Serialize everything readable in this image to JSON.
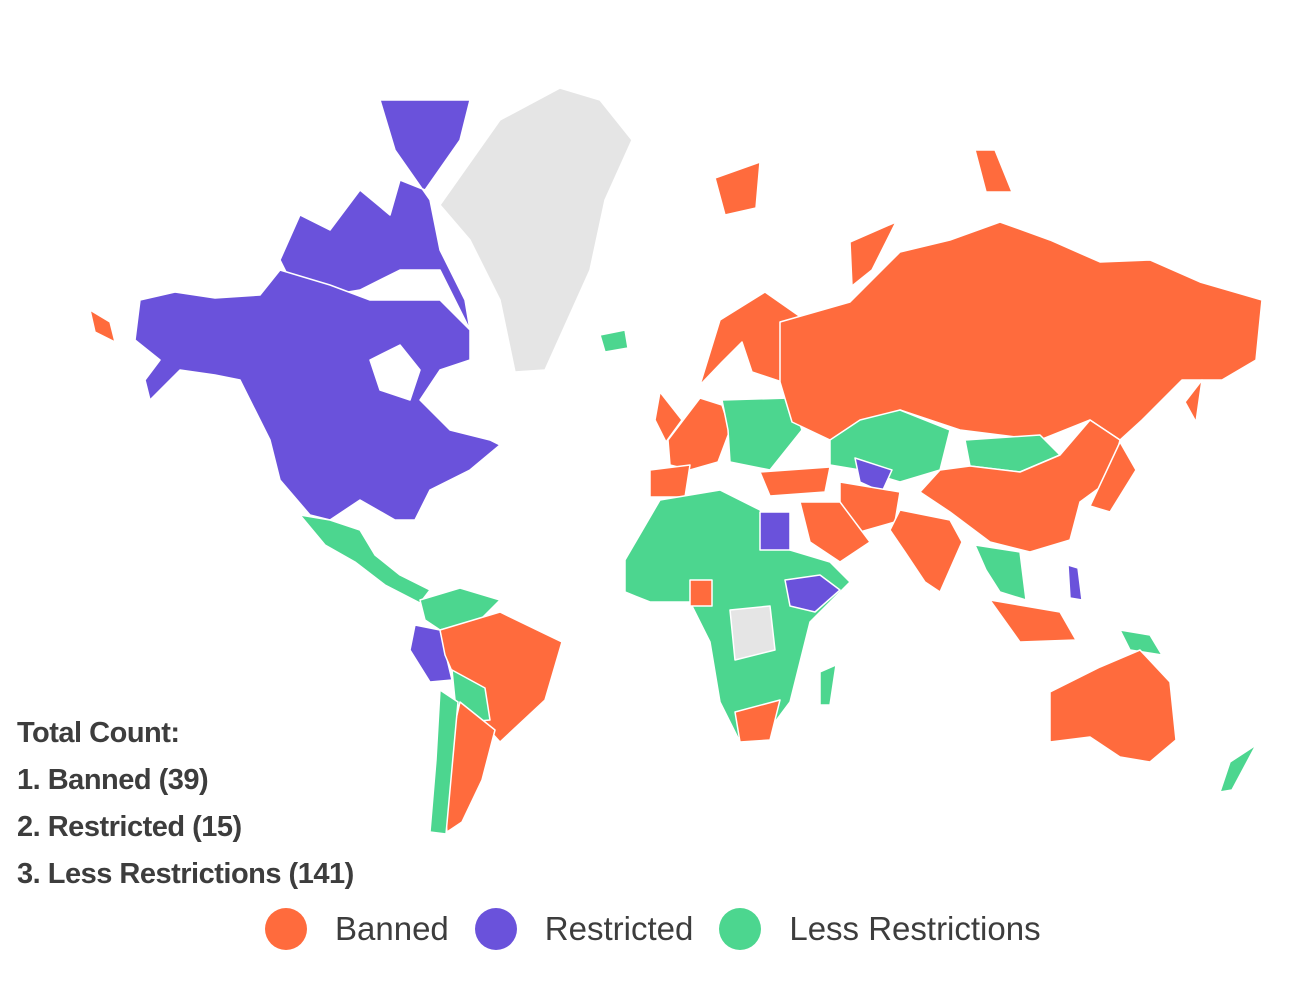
{
  "categories": [
    {
      "key": "banned",
      "label": "Banned",
      "count": 39,
      "color": "#FF6B3D"
    },
    {
      "key": "restricted",
      "label": "Restricted",
      "count": 15,
      "color": "#6A52DB"
    },
    {
      "key": "less",
      "label": "Less Restrictions",
      "count": 141,
      "color": "#4CD68F"
    },
    {
      "key": "nodata",
      "color": "#E5E5E5"
    }
  ],
  "totals": {
    "title": "Total Count:",
    "lines": [
      "1. Banned (39)",
      "2. Restricted (15)",
      "3. Less Restrictions (141)"
    ]
  },
  "legend": [
    "Banned",
    "Restricted",
    "Less Restrictions"
  ]
}
